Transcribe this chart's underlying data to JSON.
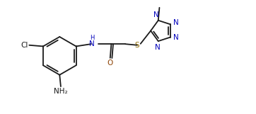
{
  "bg_color": "#ffffff",
  "line_color": "#1a1a1a",
  "N_color": "#0000bb",
  "O_color": "#8b4000",
  "S_color": "#8b6800",
  "line_width": 1.3,
  "font_size": 7.5,
  "figsize": [
    3.62,
    1.61
  ],
  "dpi": 100,
  "xlim": [
    -0.5,
    10.5
  ],
  "ylim": [
    0.2,
    5.0
  ]
}
